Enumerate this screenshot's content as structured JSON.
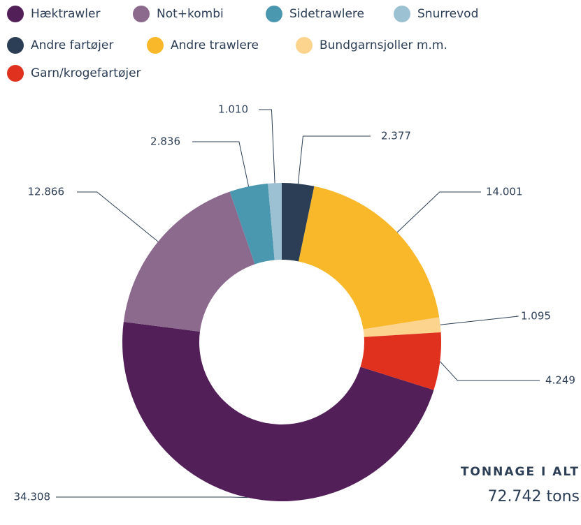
{
  "chart_data": {
    "type": "donut",
    "categories": [
      "Hæktrawler",
      "Not+kombi",
      "Sidetrawlere",
      "Snurrevod",
      "Andre fartøjer",
      "Andre trawlere",
      "Bundgarnsjoller m.m.",
      "Garn/krogefartøjer"
    ],
    "values": [
      34308,
      12866,
      2836,
      1010,
      2377,
      14001,
      1095,
      4249
    ],
    "value_labels": [
      "34.308",
      "12.866",
      "2.836",
      "1.010",
      "2.377",
      "14.001",
      "1.095",
      "4.249"
    ],
    "colors": [
      "#521f58",
      "#8c6a8e",
      "#4a98b0",
      "#9cc1d2",
      "#2c3e55",
      "#f9b82a",
      "#fcd48e",
      "#e0301e"
    ],
    "total_title": "TONNAGE I ALT",
    "total_text": "72.742 tons"
  }
}
